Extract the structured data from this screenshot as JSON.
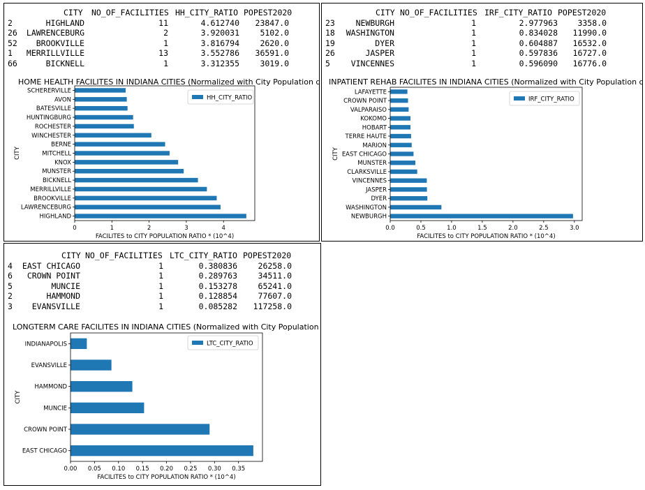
{
  "tables": [
    {
      "columns": [
        "CITY",
        "NO_OF_FACILITIES",
        "HH_CITY_RATIO",
        "POPEST2020"
      ],
      "rows": [
        {
          "idx": "2",
          "city": "HIGHLAND",
          "fac": "11",
          "ratio": "4.612740",
          "pop": "23847.0"
        },
        {
          "idx": "26",
          "city": "LAWRENCEBURG",
          "fac": "2",
          "ratio": "3.920031",
          "pop": "5102.0"
        },
        {
          "idx": "52",
          "city": "BROOKVILLE",
          "fac": "1",
          "ratio": "3.816794",
          "pop": "2620.0"
        },
        {
          "idx": "1",
          "city": "MERRILLVILLE",
          "fac": "13",
          "ratio": "3.552786",
          "pop": "36591.0"
        },
        {
          "idx": "66",
          "city": "BICKNELL",
          "fac": "1",
          "ratio": "3.312355",
          "pop": "3019.0"
        }
      ]
    },
    {
      "columns": [
        "CITY",
        "NO_OF_FACILITIES",
        "IRF_CITY_RATIO",
        "POPEST2020"
      ],
      "rows": [
        {
          "idx": "23",
          "city": "NEWBURGH",
          "fac": "1",
          "ratio": "2.977963",
          "pop": "3358.0"
        },
        {
          "idx": "18",
          "city": "WASHINGTON",
          "fac": "1",
          "ratio": "0.834028",
          "pop": "11990.0"
        },
        {
          "idx": "19",
          "city": "DYER",
          "fac": "1",
          "ratio": "0.604887",
          "pop": "16532.0"
        },
        {
          "idx": "26",
          "city": "JASPER",
          "fac": "1",
          "ratio": "0.597836",
          "pop": "16727.0"
        },
        {
          "idx": "5",
          "city": "VINCENNES",
          "fac": "1",
          "ratio": "0.596090",
          "pop": "16776.0"
        }
      ]
    },
    {
      "columns": [
        "CITY",
        "NO_OF_FACILITIES",
        "LTC_CITY_RATIO",
        "POPEST2020"
      ],
      "rows": [
        {
          "idx": "4",
          "city": "EAST CHICAGO",
          "fac": "1",
          "ratio": "0.380836",
          "pop": "26258.0"
        },
        {
          "idx": "6",
          "city": "CROWN POINT",
          "fac": "1",
          "ratio": "0.289763",
          "pop": "34511.0"
        },
        {
          "idx": "5",
          "city": "MUNCIE",
          "fac": "1",
          "ratio": "0.153278",
          "pop": "65241.0"
        },
        {
          "idx": "2",
          "city": "HAMMOND",
          "fac": "1",
          "ratio": "0.128854",
          "pop": "77607.0"
        },
        {
          "idx": "3",
          "city": "EVANSVILLE",
          "fac": "1",
          "ratio": "0.085282",
          "pop": "117258.0"
        }
      ]
    }
  ],
  "chart_data": [
    {
      "type": "bar",
      "orientation": "horizontal",
      "title": "HOME HEALTH FACILITES IN INDIANA CITIES (Normalized with City Population data)",
      "xlabel": "FACILITES to CITY POPULATION RATIO * (10^4)",
      "ylabel": "CITY",
      "legend": "upper right",
      "legend_label": "HH_CITY_RATIO",
      "color": "#1f77b4",
      "xlim": [
        0,
        4.84
      ],
      "xticks": [
        0,
        1,
        2,
        3,
        4
      ],
      "categories": [
        "HIGHLAND",
        "LAWRENCEBURG",
        "BROOKVILLE",
        "MERRILLVILLE",
        "BICKNELL",
        "MUNSTER",
        "KNOX",
        "MITCHELL",
        "BERNE",
        "WINCHESTER",
        "ROCHESTER",
        "HUNTINGBURG",
        "BATESVILLE",
        "AVON",
        "SCHERERVILLE"
      ],
      "values": [
        4.61274,
        3.920031,
        3.816794,
        3.552786,
        3.312355,
        2.93,
        2.78,
        2.55,
        2.43,
        2.06,
        1.59,
        1.57,
        1.42,
        1.4,
        1.37
      ]
    },
    {
      "type": "bar",
      "orientation": "horizontal",
      "title": "INPATIENT REHAB FACILITES IN INDIANA CITIES (Normalized with City Population data)",
      "xlabel": "FACILITES to CITY POPULATION RATIO * (10^4)",
      "ylabel": "CITY",
      "legend": "upper right",
      "legend_label": "IRF_CITY_RATIO",
      "color": "#1f77b4",
      "xlim": [
        0,
        3.127
      ],
      "xticks": [
        0.0,
        0.5,
        1.0,
        1.5,
        2.0,
        2.5,
        3.0
      ],
      "xtick_labels": [
        "0.0",
        "0.5",
        "1.0",
        "1.5",
        "2.0",
        "2.5",
        "3.0"
      ],
      "categories": [
        "NEWBURGH",
        "WASHINGTON",
        "DYER",
        "JASPER",
        "VINCENNES",
        "CLARKSVILLE",
        "MUNSTER",
        "EAST CHICAGO",
        "MARION",
        "TERRE HAUTE",
        "HOBART",
        "KOKOMO",
        "VALPARAISO",
        "CROWN POINT",
        "LAFAYETTE"
      ],
      "values": [
        2.977963,
        0.834028,
        0.604887,
        0.597836,
        0.59609,
        0.44,
        0.41,
        0.38,
        0.35,
        0.34,
        0.33,
        0.33,
        0.3,
        0.29,
        0.28
      ]
    },
    {
      "type": "bar",
      "orientation": "horizontal",
      "title": "LONGTERM CARE FACILITES IN INDIANA CITIES (Normalized with City Population data)",
      "xlabel": "FACILITES to CITY POPULATION RATIO * (10^4)",
      "ylabel": "CITY",
      "legend": "upper right",
      "legend_label": "LTC_CITY_RATIO",
      "color": "#1f77b4",
      "xlim": [
        0,
        0.3999
      ],
      "xticks": [
        0.0,
        0.05,
        0.1,
        0.15,
        0.2,
        0.25,
        0.3,
        0.35
      ],
      "xtick_labels": [
        "0.00",
        "0.05",
        "0.10",
        "0.15",
        "0.20",
        "0.25",
        "0.30",
        "0.35"
      ],
      "categories": [
        "EAST CHICAGO",
        "CROWN POINT",
        "MUNCIE",
        "HAMMOND",
        "EVANSVILLE",
        "INDIANAPOLIS"
      ],
      "values": [
        0.380836,
        0.289763,
        0.153278,
        0.128854,
        0.085282,
        0.034
      ]
    }
  ]
}
